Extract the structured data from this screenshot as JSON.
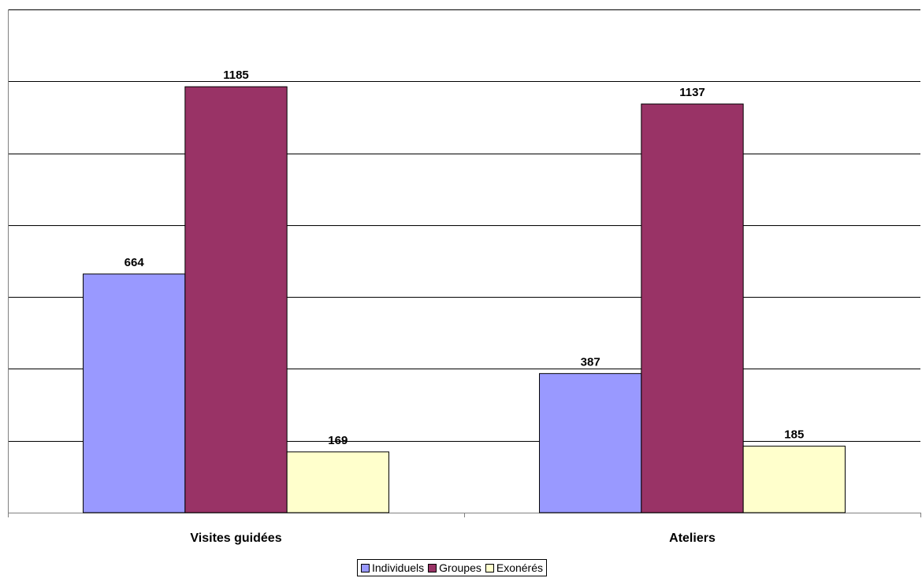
{
  "chart_data": {
    "type": "bar",
    "categories": [
      "Visites guidées",
      "Ateliers"
    ],
    "series": [
      {
        "name": "Individuels",
        "values": [
          664,
          387
        ],
        "color": "#9999ff"
      },
      {
        "name": "Groupes",
        "values": [
          1185,
          1137
        ],
        "color": "#993366"
      },
      {
        "name": "Exonérés",
        "values": [
          169,
          185
        ],
        "color": "#ffffcc"
      }
    ],
    "ylim": [
      0,
      1400
    ],
    "y_gridline_step": 200,
    "y_tick_labels_shown": false,
    "grid": true,
    "data_labels": true,
    "legend_position": "bottom"
  }
}
